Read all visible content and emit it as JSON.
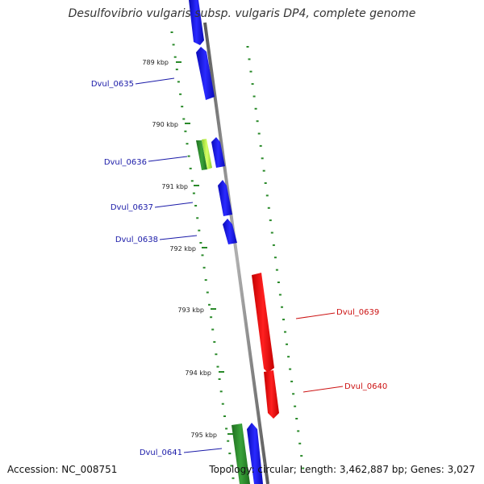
{
  "title": "Desulfovibrio vulgaris subsp. vulgaris DP4, complete genome",
  "footer": {
    "accession": "Accession: NC_008751",
    "summary": "Topology: circular; Length: 3,462,887 bp; Genes: 3,027"
  },
  "colors": {
    "forward_gene": "#1414ee",
    "reverse_gene": "#ee1111",
    "green_gene": "#2a8a2a",
    "lime_gene": "#b8f040",
    "backbone": "#8c8c8c",
    "tick": "#2a8a2a",
    "forward_label": "#1a1aa8",
    "reverse_label": "#cc1111"
  },
  "ticks": [
    {
      "label": "789 kbp"
    },
    {
      "label": "790 kbp"
    },
    {
      "label": "791 kbp"
    },
    {
      "label": "792 kbp"
    },
    {
      "label": "793 kbp"
    },
    {
      "label": "794 kbp"
    },
    {
      "label": "795 kbp"
    }
  ],
  "genes": [
    {
      "label": "Dvul_0635",
      "strand": "forward"
    },
    {
      "label": "Dvul_0636",
      "strand": "forward"
    },
    {
      "label": "Dvul_0637",
      "strand": "forward"
    },
    {
      "label": "Dvul_0638",
      "strand": "forward"
    },
    {
      "label": "Dvul_0639",
      "strand": "reverse"
    },
    {
      "label": "Dvul_0640",
      "strand": "reverse"
    },
    {
      "label": "Dvul_0641",
      "strand": "forward"
    }
  ]
}
